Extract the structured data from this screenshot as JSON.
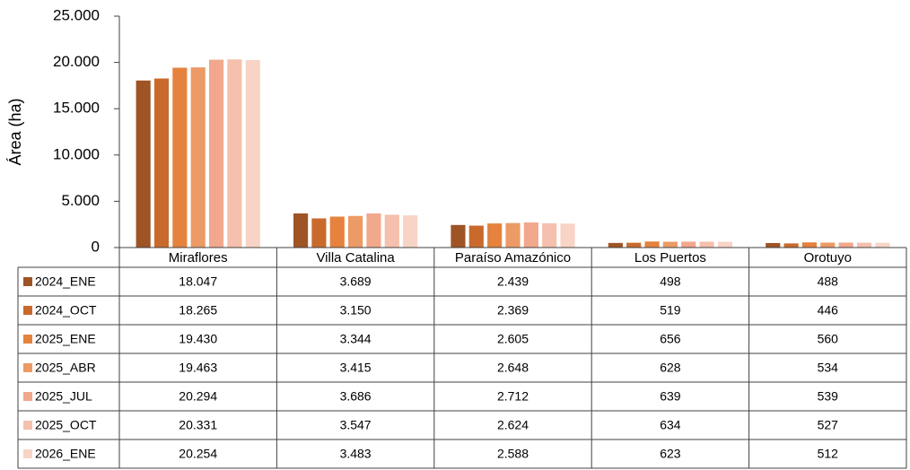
{
  "chart_data": {
    "type": "bar",
    "y_label": "Área (ha)",
    "categories": [
      "Miraflores",
      "Villa Catalina",
      "Paraíso Amazónico",
      "Los Puertos",
      "Orotuyo"
    ],
    "series": [
      {
        "name": "2024_ENE",
        "color": "#9e5424",
        "values": [
          18047,
          3689,
          2439,
          498,
          488
        ],
        "value_labels": [
          "18.047",
          "3.689",
          "2.439",
          "498",
          "488"
        ]
      },
      {
        "name": "2024_OCT",
        "color": "#c96a2c",
        "values": [
          18265,
          3150,
          2369,
          519,
          446
        ],
        "value_labels": [
          "18.265",
          "3.150",
          "2.369",
          "519",
          "446"
        ]
      },
      {
        "name": "2025_ENE",
        "color": "#e5823e",
        "values": [
          19430,
          3344,
          2605,
          656,
          560
        ],
        "value_labels": [
          "19.430",
          "3.344",
          "2.605",
          "656",
          "560"
        ]
      },
      {
        "name": "2025_ABR",
        "color": "#ec9a66",
        "values": [
          19463,
          3415,
          2648,
          628,
          534
        ],
        "value_labels": [
          "19.463",
          "3.415",
          "2.648",
          "628",
          "534"
        ]
      },
      {
        "name": "2025_JUL",
        "color": "#f1a88c",
        "values": [
          20294,
          3686,
          2712,
          639,
          539
        ],
        "value_labels": [
          "20.294",
          "3.686",
          "2.712",
          "639",
          "539"
        ]
      },
      {
        "name": "2025_OCT",
        "color": "#f5c0ad",
        "values": [
          20331,
          3547,
          2624,
          634,
          527
        ],
        "value_labels": [
          "20.331",
          "3.547",
          "2.624",
          "634",
          "527"
        ]
      },
      {
        "name": "2026_ENE",
        "color": "#f8d4c6",
        "values": [
          20254,
          3483,
          2588,
          623,
          512
        ],
        "value_labels": [
          "20.254",
          "3.483",
          "2.588",
          "623",
          "512"
        ]
      }
    ],
    "ylim": [
      0,
      25000
    ],
    "yticks": [
      0,
      {
        "value": 5000,
        "label": "5.000"
      },
      {
        "value": 10000,
        "label": "10.000"
      },
      {
        "value": 15000,
        "label": "15.000"
      },
      {
        "value": 20000,
        "label": "20.000"
      },
      {
        "value": 25000,
        "label": "25.000"
      }
    ]
  }
}
